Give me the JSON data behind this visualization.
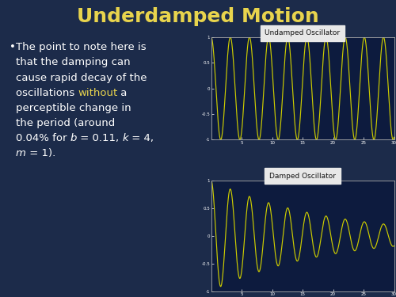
{
  "title": "Underdamped Motion",
  "title_color": "#e8d44d",
  "bg_color": "#1c2b4a",
  "plot_bg_color": "#0d1b3e",
  "line_color": "#cccc00",
  "text_color": "#ffffff",
  "highlight_color": "#e8d44d",
  "plot1_title": "Undamped Oscillator",
  "plot2_title": "Damped Oscillator",
  "b": 0.11,
  "k": 4,
  "m": 1,
  "t_max": 30,
  "n_points": 3000,
  "font_size": 9.5,
  "title_font_size": 18
}
